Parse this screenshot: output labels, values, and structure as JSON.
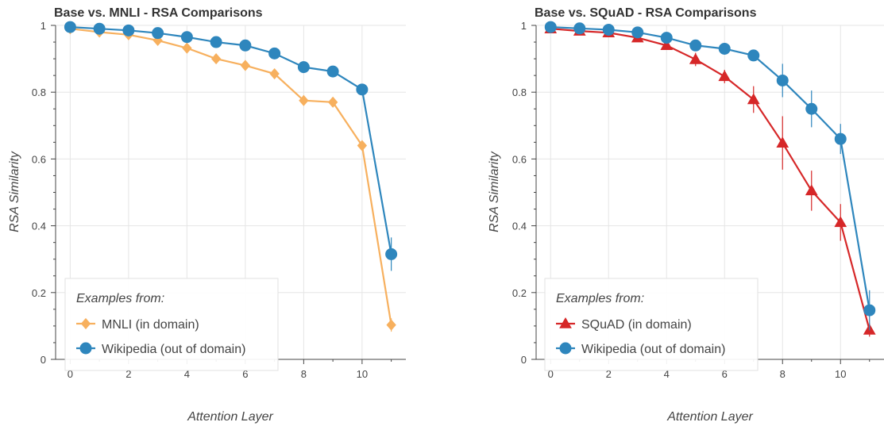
{
  "colors": {
    "orange": "#f7b05e",
    "blue": "#2e86bd",
    "red": "#d62728",
    "grid": "#e5e5e5",
    "axis": "#444444"
  },
  "chart_data": [
    {
      "type": "line",
      "title": "Base vs. MNLI - RSA Comparisons",
      "xlabel": "Attention Layer",
      "ylabel": "RSA Similarity",
      "xlim": [
        -0.5,
        11.5
      ],
      "ylim": [
        0,
        1
      ],
      "x_ticks": [
        0,
        2,
        4,
        6,
        8,
        10
      ],
      "y_ticks": [
        0,
        0.2,
        0.4,
        0.6,
        0.8,
        1
      ],
      "y_tick_labels": [
        "0",
        "0.2",
        "0.4",
        "0.6",
        "0.8",
        "1"
      ],
      "grid": true,
      "legend_title": "Examples from:",
      "legend_position": "bottom-left",
      "x": [
        0,
        1,
        2,
        3,
        4,
        5,
        6,
        7,
        8,
        9,
        10,
        11
      ],
      "series": [
        {
          "name": "MNLI (in domain)",
          "color": "#f7b05e",
          "marker": "diamond",
          "values": [
            0.99,
            0.98,
            0.972,
            0.955,
            0.932,
            0.9,
            0.88,
            0.855,
            0.775,
            0.77,
            0.64,
            0.103
          ],
          "errors": [
            0,
            0,
            0,
            0,
            0,
            0,
            0,
            0,
            0.01,
            0.01,
            0.01,
            0.02
          ]
        },
        {
          "name": "Wikipedia (out of domain)",
          "color": "#2e86bd",
          "marker": "circle",
          "values": [
            0.995,
            0.99,
            0.985,
            0.977,
            0.965,
            0.95,
            0.94,
            0.916,
            0.875,
            0.862,
            0.808,
            0.315
          ],
          "errors": [
            0,
            0,
            0,
            0,
            0,
            0,
            0,
            0,
            0,
            0,
            0,
            0.05
          ]
        }
      ]
    },
    {
      "type": "line",
      "title": "Base vs. SQuAD - RSA Comparisons",
      "xlabel": "Attention Layer",
      "ylabel": "RSA Similarity",
      "xlim": [
        -0.5,
        11.5
      ],
      "ylim": [
        0,
        1
      ],
      "x_ticks": [
        0,
        2,
        4,
        6,
        8,
        10
      ],
      "y_ticks": [
        0,
        0.2,
        0.4,
        0.6,
        0.8,
        1
      ],
      "y_tick_labels": [
        "0",
        "0.2",
        "0.4",
        "0.6",
        "0.8",
        "1"
      ],
      "grid": true,
      "legend_title": "Examples from:",
      "legend_position": "bottom-left",
      "x": [
        0,
        1,
        2,
        3,
        4,
        5,
        6,
        7,
        8,
        9,
        10,
        11
      ],
      "series": [
        {
          "name": "SQuAD (in domain)",
          "color": "#d62728",
          "marker": "triangle",
          "values": [
            0.99,
            0.983,
            0.978,
            0.963,
            0.94,
            0.898,
            0.847,
            0.778,
            0.648,
            0.505,
            0.41,
            0.088
          ],
          "errors": [
            0,
            0.01,
            0.01,
            0.01,
            0.01,
            0.02,
            0.02,
            0.04,
            0.08,
            0.06,
            0.055,
            0.02
          ]
        },
        {
          "name": "Wikipedia (out of domain)",
          "color": "#2e86bd",
          "marker": "circle",
          "values": [
            0.995,
            0.991,
            0.987,
            0.979,
            0.963,
            0.94,
            0.93,
            0.91,
            0.835,
            0.75,
            0.66,
            0.147
          ],
          "errors": [
            0,
            0,
            0,
            0,
            0,
            0,
            0,
            0,
            0.05,
            0.055,
            0.045,
            0.06
          ]
        }
      ]
    }
  ]
}
